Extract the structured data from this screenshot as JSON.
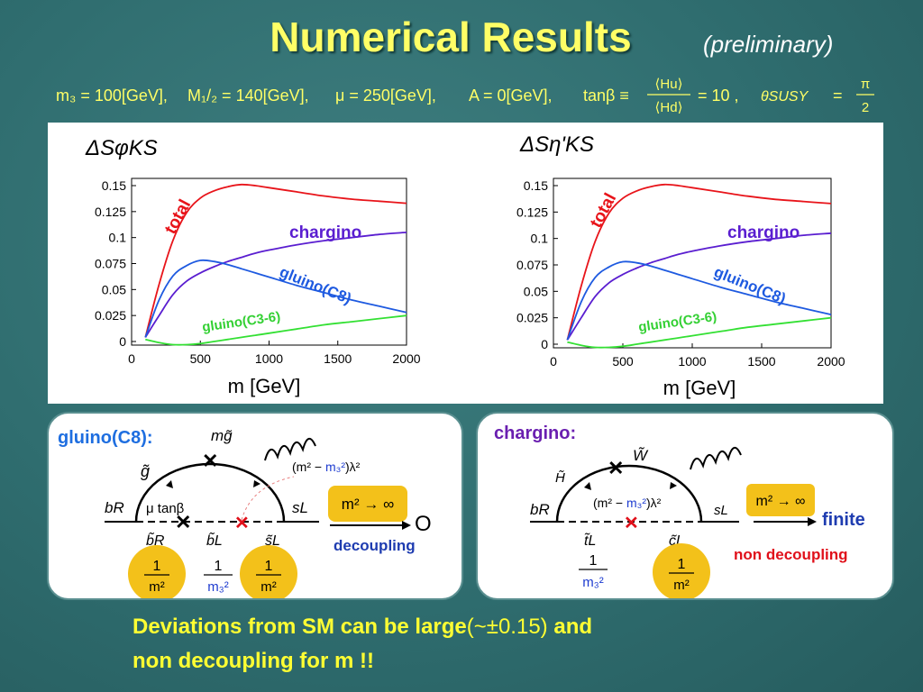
{
  "slide": {
    "title": "Numerical Results",
    "subtitle": "(preliminary)",
    "params": {
      "m3": "m₃ = 100[GeV],",
      "m12": "M₁/₂ = 140[GeV],",
      "mu": "μ = 250[GeV],",
      "A": "A = 0[GeV],",
      "tanb_lhs": "tanβ ≡",
      "frac_num": "⟨Hu⟩",
      "frac_den": "⟨Hd⟩",
      "tanb_rhs": "= 10 ,",
      "theta": "θSUSY",
      "eq": "=",
      "pi_num": "π",
      "pi_den": "2"
    }
  },
  "chart_data": [
    {
      "type": "line",
      "title": "ΔSφKS",
      "xlabel": "m [GeV]",
      "ylabel": "",
      "xlim": [
        0,
        2000
      ],
      "ylim": [
        0,
        0.15
      ],
      "xticks": [
        "0",
        "500",
        "1000",
        "1500",
        "2000"
      ],
      "yticks": [
        "0",
        "0.025",
        "0.05",
        "0.075",
        "0.1",
        "0.125",
        "0.15"
      ],
      "series": [
        {
          "name": "total",
          "color": "#e8141a",
          "x": [
            100,
            200,
            300,
            400,
            500,
            600,
            700,
            800,
            900,
            1000,
            1200,
            1400,
            1600,
            1800,
            2000
          ],
          "y": [
            0.004,
            0.055,
            0.097,
            0.124,
            0.138,
            0.145,
            0.149,
            0.151,
            0.15,
            0.148,
            0.144,
            0.14,
            0.137,
            0.135,
            0.133
          ]
        },
        {
          "name": "chargino",
          "color": "#5a1ed0",
          "x": [
            100,
            200,
            300,
            400,
            500,
            600,
            700,
            800,
            900,
            1000,
            1200,
            1400,
            1600,
            1800,
            2000
          ],
          "y": [
            0.004,
            0.025,
            0.045,
            0.058,
            0.066,
            0.072,
            0.077,
            0.081,
            0.085,
            0.088,
            0.093,
            0.097,
            0.1,
            0.103,
            0.105
          ]
        },
        {
          "name": "gluino(C8)",
          "color": "#1e5ae0",
          "x": [
            100,
            200,
            300,
            400,
            500,
            600,
            700,
            800,
            900,
            1000,
            1200,
            1400,
            1600,
            1800,
            2000
          ],
          "y": [
            0.004,
            0.04,
            0.063,
            0.073,
            0.078,
            0.077,
            0.074,
            0.07,
            0.066,
            0.062,
            0.054,
            0.047,
            0.04,
            0.034,
            0.028
          ]
        },
        {
          "name": "gluino(C3-6)",
          "color": "#33e033",
          "x": [
            100,
            200,
            300,
            400,
            500,
            600,
            700,
            800,
            900,
            1000,
            1200,
            1400,
            1600,
            1800,
            2000
          ],
          "y": [
            0.002,
            -0.001,
            -0.003,
            -0.003,
            -0.002,
            0.0,
            0.002,
            0.004,
            0.006,
            0.008,
            0.012,
            0.016,
            0.019,
            0.022,
            0.025
          ]
        }
      ]
    },
    {
      "type": "line",
      "title": "ΔSη'KS",
      "xlabel": "m [GeV]",
      "ylabel": "",
      "xlim": [
        0,
        2000
      ],
      "ylim": [
        0,
        0.15
      ],
      "xticks": [
        "0",
        "500",
        "1000",
        "1500",
        "2000"
      ],
      "yticks": [
        "0",
        "0.025",
        "0.05",
        "0.075",
        "0.1",
        "0.125",
        "0.15"
      ],
      "series": [
        {
          "name": "total",
          "color": "#e8141a",
          "x": [
            100,
            200,
            300,
            400,
            500,
            600,
            700,
            800,
            900,
            1000,
            1200,
            1400,
            1600,
            1800,
            2000
          ],
          "y": [
            0.004,
            0.055,
            0.097,
            0.124,
            0.138,
            0.145,
            0.149,
            0.151,
            0.15,
            0.148,
            0.144,
            0.14,
            0.137,
            0.135,
            0.133
          ]
        },
        {
          "name": "chargino",
          "color": "#5a1ed0",
          "x": [
            100,
            200,
            300,
            400,
            500,
            600,
            700,
            800,
            900,
            1000,
            1200,
            1400,
            1600,
            1800,
            2000
          ],
          "y": [
            0.004,
            0.025,
            0.045,
            0.058,
            0.066,
            0.072,
            0.077,
            0.081,
            0.085,
            0.088,
            0.093,
            0.097,
            0.1,
            0.103,
            0.105
          ]
        },
        {
          "name": "gluino(C8)",
          "color": "#1e5ae0",
          "x": [
            100,
            200,
            300,
            400,
            500,
            600,
            700,
            800,
            900,
            1000,
            1200,
            1400,
            1600,
            1800,
            2000
          ],
          "y": [
            0.004,
            0.04,
            0.063,
            0.073,
            0.078,
            0.077,
            0.074,
            0.07,
            0.066,
            0.062,
            0.054,
            0.047,
            0.04,
            0.034,
            0.028
          ]
        },
        {
          "name": "gluino(C3-6)",
          "color": "#33e033",
          "x": [
            100,
            200,
            300,
            400,
            500,
            600,
            700,
            800,
            900,
            1000,
            1200,
            1400,
            1600,
            1800,
            2000
          ],
          "y": [
            0.002,
            -0.001,
            -0.003,
            -0.003,
            -0.002,
            0.0,
            0.002,
            0.004,
            0.006,
            0.008,
            0.012,
            0.016,
            0.019,
            0.022,
            0.025
          ]
        }
      ]
    }
  ],
  "diagrams": {
    "gluino": {
      "heading": "gluino(C8):",
      "m_gluino": "mg̃",
      "g_tilde": "g̃",
      "bR": "bR",
      "sL": "sL",
      "mu_tanb": "μ tanβ",
      "bR_tilde": "b̃R",
      "bL_tilde": "b̃L",
      "sL_tilde": "s̃L",
      "mix_pre": "(m² − ",
      "mix_m3": "m₃²",
      "mix_post": ")λ²",
      "limit": "m² → ∞",
      "result": "O",
      "decoupling": "decoupling",
      "frac_num": "1",
      "frac_den1": "m²",
      "frac_den2": "m₃²",
      "frac_den3": "m²"
    },
    "chargino": {
      "heading": "chargino:",
      "W_tilde": "W̃",
      "H_tilde": "H̃",
      "bR": "bR",
      "sL": "sL",
      "tL_tilde": "t̃L",
      "cL_tilde": "c̃L",
      "mix_pre": "(m² − ",
      "mix_m3": "m₃²",
      "mix_post": ")λ²",
      "limit": "m² → ∞",
      "finite": "finite",
      "non_decoupling": "non decoupling",
      "frac_num": "1",
      "frac_den1": "m₃²",
      "frac_den2": "m²"
    }
  },
  "conclusion": {
    "line1_bold": "Deviations from SM can be large",
    "line1_plain": "(~±0.15)",
    "line1_end": " and",
    "line2": "non decoupling for m !!"
  },
  "colors": {
    "background": "#2f6d6f",
    "title": "#ffff66",
    "accent_blue": "#1e6ee0",
    "accent_purple": "#6a1fb0",
    "accent_red": "#e0101a",
    "badge": "#f3c11a"
  }
}
